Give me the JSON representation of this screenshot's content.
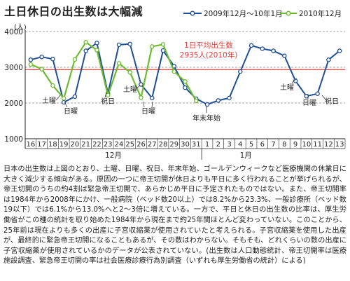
{
  "title": "土日休日の出生数は大幅減",
  "chart_data": {
    "type": "line",
    "ylabel": "(人)",
    "ylim": [
      1000,
      4000
    ],
    "yticks": [
      1000,
      2000,
      3000,
      4000
    ],
    "categories": [
      "16",
      "17",
      "18",
      "19",
      "20",
      "21",
      "22",
      "23",
      "24",
      "25",
      "26",
      "27",
      "28",
      "29",
      "30",
      "31",
      "1",
      "2",
      "3",
      "4",
      "5",
      "6",
      "7",
      "8",
      "9",
      "10",
      "11",
      "12",
      "13"
    ],
    "month_labels": [
      "12月",
      "1月"
    ],
    "series": [
      {
        "name": "2009年12月～10年1月",
        "color": "#1f4e96",
        "values": [
          3210,
          3290,
          3230,
          2020,
          2180,
          3460,
          3680,
          2270,
          3630,
          3650,
          2520,
          2140,
          3470,
          3030,
          2430,
          2120,
          1960,
          2070,
          2140,
          2880,
          3610,
          3520,
          3460,
          3320,
          2620,
          2190,
          2260,
          3210,
          3460
        ]
      },
      {
        "name": "2010年12月",
        "color": "#6dbb2e",
        "values": [
          3080,
          2950,
          2490,
          2130,
          3220,
          3700,
          3480,
          2220,
          3110,
          2860,
          2150,
          3580,
          3640,
          2880,
          2600,
          2060,
          null,
          null,
          null,
          null,
          null,
          null,
          null,
          null,
          null,
          null,
          null,
          null,
          null
        ]
      }
    ],
    "reference_line": {
      "value": 2935,
      "label_line1": "1日平均出生数",
      "label_line2": "2935人(2010年)",
      "color": "#e53935"
    },
    "annotations": {
      "saturday_left": "土曜",
      "sunday_left": "日曜",
      "holiday_left": "祝日",
      "saturday_mid": "土曜",
      "sunday_mid": "日曜",
      "year_end": "年末年始",
      "saturday_right": "土曜",
      "sunday_right": "日曜",
      "holiday_right": "祝日"
    }
  },
  "body": "日本の出生数は上図のとおり、土曜、日曜、祝日、年末年始、ゴールデンウィークなど医療機関の休業日に大きく減少する傾向がある。原因の一つに帝王切開が休日よりも平日に多く行われることが挙げられるが、帝王切開のうちの約4割は緊急帝王切開で、あらかじめ平日に予定されたものではない。また、帝王切開率は1984年から2008年にかけ、一般病院（ベッド数20以上）では8.2%から23.3%、一般診療所（ベッド数19以下）では6.1%から13.0%へと2～3倍に増えている。一方で、平日と休日の出生数の比率は、厚生労働省がこの種の統計を取り始めた1984年から現在まで約25年間ほとんど変わっていない。このことから、25年前は現在よりも多くの出産に子宮収縮薬が使用されていたと考えられる。子宮収縮薬を使用した出産が、最終的に緊急帝王切開になることもあるが、その数はわからない。そもそも、どれくらいの数の出産に子宮収縮薬が使用されているかのデータが公表されていない。(出生数は人口動態統計、帝王切開率は医療施設調査、緊急帝王切開の率は社会医療診療行為別調査（いずれも厚生労働省の統計）による)"
}
